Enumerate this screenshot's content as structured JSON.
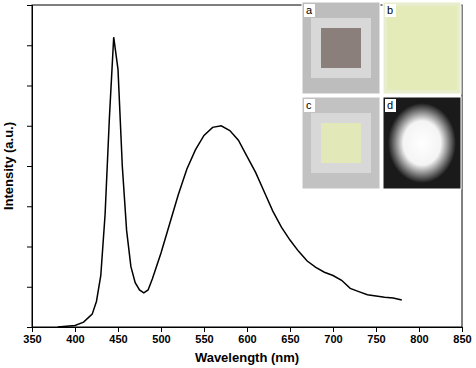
{
  "chart_data": {
    "type": "line",
    "x_label": "Wavelength (nm)",
    "y_label": "Intensity (a.u.)",
    "x": [
      380,
      390,
      400,
      410,
      420,
      425,
      430,
      435,
      440,
      445,
      450,
      455,
      460,
      465,
      470,
      475,
      480,
      485,
      490,
      500,
      510,
      520,
      530,
      540,
      550,
      560,
      570,
      580,
      590,
      600,
      610,
      620,
      630,
      640,
      650,
      660,
      670,
      680,
      690,
      700,
      710,
      720,
      730,
      740,
      750,
      760,
      770,
      780
    ],
    "values": [
      0,
      0.02,
      0.04,
      0.12,
      0.32,
      0.64,
      1.28,
      2.8,
      5.2,
      7.2,
      6.4,
      4.0,
      2.4,
      1.5,
      1.1,
      0.92,
      0.85,
      0.92,
      1.2,
      1.84,
      2.56,
      3.28,
      3.92,
      4.4,
      4.76,
      4.96,
      5.0,
      4.88,
      4.64,
      4.24,
      3.84,
      3.36,
      2.88,
      2.48,
      2.16,
      1.88,
      1.64,
      1.48,
      1.36,
      1.28,
      1.16,
      0.96,
      0.88,
      0.8,
      0.77,
      0.74,
      0.72,
      0.67
    ],
    "color": "#000000",
    "xlim": [
      350,
      850
    ],
    "xticks": [
      350,
      400,
      450,
      500,
      550,
      600,
      650,
      700,
      750,
      800,
      850
    ],
    "ylim": [
      0,
      8
    ],
    "yticks": [
      0,
      1,
      2,
      3,
      4,
      5,
      6,
      7,
      8
    ],
    "tick_labels": "x",
    "annotations": [
      "a",
      "b",
      "c",
      "d"
    ]
  }
}
